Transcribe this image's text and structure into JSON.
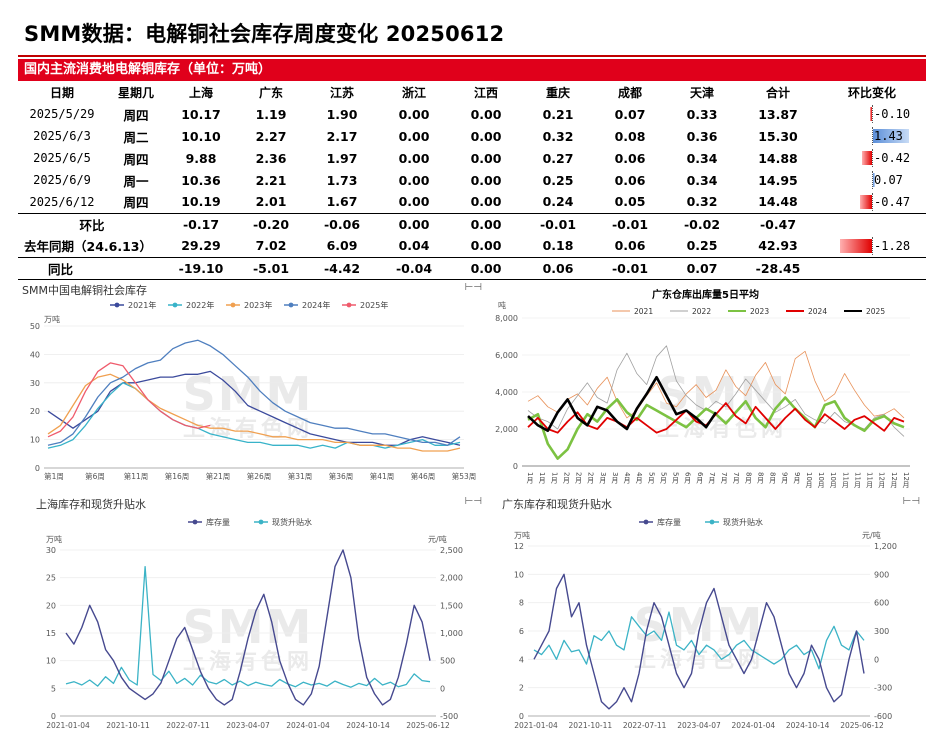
{
  "page_title": "SMM数据：电解铜社会库存周度变化 20250612",
  "table": {
    "caption": "国内主流消费地电解铜库存（单位：万吨）",
    "headers": [
      "日期",
      "星期几",
      "上海",
      "广东",
      "江苏",
      "浙江",
      "江西",
      "重庆",
      "成都",
      "天津",
      "合计",
      "环比变化"
    ],
    "rows": [
      {
        "date": "2025/5/29",
        "weekday": "周四",
        "values": [
          "10.17",
          "1.19",
          "1.90",
          "0.00",
          "0.00",
          "0.21",
          "0.07",
          "0.33",
          "13.87"
        ],
        "change": "-0.10",
        "change_num": -0.1
      },
      {
        "date": "2025/6/3",
        "weekday": "周二",
        "values": [
          "10.10",
          "2.27",
          "2.17",
          "0.00",
          "0.00",
          "0.32",
          "0.08",
          "0.36",
          "15.30"
        ],
        "change": "1.43",
        "change_num": 1.43
      },
      {
        "date": "2025/6/5",
        "weekday": "周四",
        "values": [
          "9.88",
          "2.36",
          "1.97",
          "0.00",
          "0.00",
          "0.27",
          "0.06",
          "0.34",
          "14.88"
        ],
        "change": "-0.42",
        "change_num": -0.42
      },
      {
        "date": "2025/6/9",
        "weekday": "周一",
        "values": [
          "10.36",
          "2.21",
          "1.73",
          "0.00",
          "0.00",
          "0.25",
          "0.06",
          "0.34",
          "14.95"
        ],
        "change": "0.07",
        "change_num": 0.07
      },
      {
        "date": "2025/6/12",
        "weekday": "周四",
        "values": [
          "10.19",
          "2.01",
          "1.67",
          "0.00",
          "0.00",
          "0.24",
          "0.05",
          "0.32",
          "14.48"
        ],
        "change": "-0.47",
        "change_num": -0.47
      }
    ],
    "summary": [
      {
        "label": "环比",
        "values": [
          "-0.17",
          "-0.20",
          "-0.06",
          "0.00",
          "0.00",
          "-0.01",
          "-0.01",
          "-0.02",
          "-0.47"
        ],
        "change": "",
        "change_num": null
      },
      {
        "label": "去年同期（24.6.13）",
        "values": [
          "29.29",
          "7.02",
          "6.09",
          "0.04",
          "0.00",
          "0.18",
          "0.06",
          "0.25",
          "42.93"
        ],
        "change": "-1.28",
        "change_num": -1.28
      },
      {
        "label": "同比",
        "values": [
          "-19.10",
          "-5.01",
          "-4.42",
          "-0.04",
          "0.00",
          "0.06",
          "-0.01",
          "0.07",
          "-28.45"
        ],
        "change": "",
        "change_num": null
      }
    ]
  },
  "watermark": {
    "main": "SMM",
    "sub": "上海有色网"
  },
  "panel_icon": "expand-icon",
  "chart_data": [
    {
      "type": "line",
      "title": "SMM中国电解铜社会库存",
      "ylabel": "万吨",
      "ylim": [
        0,
        50
      ],
      "yticks": [
        "0",
        "10",
        "20",
        "30",
        "40",
        "50"
      ],
      "xticks": [
        "第1周",
        "第6周",
        "第11周",
        "第16周",
        "第21周",
        "第26周",
        "第31周",
        "第36周",
        "第41周",
        "第46周",
        "第53周"
      ],
      "series": [
        {
          "name": "2021年",
          "color": "#3b4a9c",
          "values": [
            20,
            17,
            14,
            17,
            20,
            27,
            30,
            30,
            31,
            32,
            32,
            33,
            33,
            34,
            31,
            27,
            22,
            20,
            18,
            16,
            14,
            12,
            11,
            10,
            9,
            9,
            9,
            8,
            8,
            10,
            11,
            10,
            9,
            8
          ]
        },
        {
          "name": "2022年",
          "color": "#38b3c9",
          "values": [
            7,
            8,
            10,
            15,
            21,
            26,
            30,
            28,
            24,
            20,
            17,
            15,
            14,
            12,
            11,
            10,
            9,
            9,
            8,
            8,
            8,
            7,
            8,
            7,
            9,
            8,
            8,
            7,
            8,
            9,
            10,
            8,
            8,
            9
          ]
        },
        {
          "name": "2023年",
          "color": "#f0a050",
          "values": [
            12,
            15,
            22,
            29,
            32,
            33,
            31,
            28,
            24,
            21,
            19,
            17,
            15,
            14,
            14,
            13,
            13,
            12,
            11,
            11,
            10,
            10,
            10,
            9,
            9,
            8,
            8,
            8,
            7,
            7,
            6,
            6,
            6,
            7
          ]
        },
        {
          "name": "2024年",
          "color": "#4f7fbf",
          "values": [
            8,
            9,
            12,
            18,
            25,
            30,
            32,
            35,
            37,
            38,
            42,
            44,
            45,
            43,
            40,
            36,
            32,
            27,
            23,
            20,
            18,
            16,
            15,
            14,
            14,
            13,
            12,
            12,
            11,
            10,
            9,
            9,
            8,
            11
          ]
        },
        {
          "name": "2025年",
          "color": "#ef5b6c",
          "values": [
            11,
            13,
            18,
            27,
            34,
            37,
            36,
            30,
            24,
            20,
            17,
            15,
            14,
            15
          ]
        }
      ]
    },
    {
      "type": "line",
      "title": "广东仓库出库量5日平均",
      "ylabel": "吨",
      "ylim": [
        0,
        8000
      ],
      "yticks": [
        "0",
        "2,000",
        "4,000",
        "6,000",
        "8,000"
      ],
      "xticks": [
        "1月",
        "1月",
        "1月",
        "2月",
        "2月",
        "2月",
        "3月",
        "3月",
        "4月",
        "4月",
        "5月",
        "5月",
        "5月",
        "6月",
        "6月",
        "7月",
        "7月",
        "7月",
        "8月",
        "8月",
        "8月",
        "9月",
        "9月",
        "10月",
        "10月",
        "10月",
        "11月",
        "11月",
        "11月",
        "12月",
        "12月",
        "12月"
      ],
      "series": [
        {
          "name": "2021",
          "color": "#e8925a",
          "values": [
            3500,
            3800,
            3200,
            2900,
            3600,
            3900,
            3300,
            4200,
            4800,
            3500,
            2600,
            3000,
            3800,
            4500,
            3400,
            3200,
            3900,
            4400,
            3700,
            4100,
            5200,
            4300,
            3800,
            4900,
            5600,
            4400,
            3900,
            5800,
            6200,
            4600,
            3500,
            3900,
            5000,
            4100,
            3300,
            2700,
            2800,
            3100,
            2600
          ]
        },
        {
          "name": "2022",
          "color": "#a0a0a0",
          "values": [
            3000,
            2600,
            2400,
            2000,
            3100,
            3800,
            4500,
            3700,
            3400,
            5200,
            6100,
            5000,
            4400,
            5900,
            6500,
            4600,
            3800,
            3300,
            3000,
            3500,
            3200,
            3900,
            4700,
            4100,
            3500,
            2900,
            3200,
            3600,
            2800,
            2500,
            2300,
            2900,
            2400,
            2200,
            2000,
            2600,
            2800,
            2100,
            1600
          ]
        },
        {
          "name": "2023",
          "color": "#7cc242",
          "values": [
            2500,
            2800,
            1200,
            400,
            900,
            2000,
            2800,
            2400,
            3100,
            3600,
            2900,
            2500,
            3300,
            3000,
            2700,
            2400,
            2100,
            2600,
            3100,
            2800,
            2300,
            2900,
            3500,
            2600,
            2100,
            3100,
            3700,
            3100,
            2600,
            2100,
            3300,
            3500,
            2600,
            2200,
            1900,
            2500,
            2700,
            2300,
            2100
          ]
        },
        {
          "name": "2024",
          "color": "#e00000",
          "values": [
            2100,
            2600,
            2000,
            1800,
            2400,
            2900,
            2200,
            2000,
            2600,
            2400,
            2100,
            2600,
            2200,
            1800,
            2000,
            2500,
            3000,
            2400,
            2200,
            2800,
            3400,
            2700,
            2300,
            3200,
            2600,
            2000,
            2600,
            3100,
            2500,
            2100,
            2800,
            2400,
            2000,
            2500,
            2700,
            2300,
            1900,
            2600,
            2400
          ]
        },
        {
          "name": "2025",
          "color": "#000000",
          "values": [
            2700,
            2200,
            1900,
            2900,
            3600,
            2600,
            2200,
            3200,
            3000,
            2400,
            2000,
            3100,
            3900,
            4800,
            3800,
            2800,
            3000,
            2600,
            2100,
            2900
          ]
        }
      ]
    },
    {
      "type": "line",
      "title": "上海库存和现货升贴水",
      "ylabel": "万吨",
      "y2label": "元/吨",
      "ylim": [
        0,
        30
      ],
      "y2lim": [
        -500,
        2500
      ],
      "yticks": [
        "0",
        "5",
        "10",
        "15",
        "20",
        "25",
        "30"
      ],
      "y2ticks": [
        "-500",
        "0",
        "500",
        "1,000",
        "1,500",
        "2,000",
        "2,500"
      ],
      "xticks": [
        "2021-01-04",
        "2021-10-11",
        "2022-07-11",
        "2023-04-07",
        "2024-01-04",
        "2024-10-14",
        "2025-06-12"
      ],
      "series": [
        {
          "name": "库存量",
          "color": "#46498f",
          "values": [
            15,
            13,
            16,
            20,
            17,
            12,
            10,
            7,
            5,
            4,
            3,
            4,
            6,
            10,
            14,
            16,
            12,
            8,
            5,
            3,
            2,
            3,
            8,
            14,
            19,
            22,
            17,
            10,
            6,
            3,
            2,
            4,
            9,
            18,
            27,
            30,
            25,
            14,
            7,
            4,
            2,
            3,
            7,
            13,
            20,
            17,
            10
          ]
        },
        {
          "name": "现货升贴水",
          "color": "#3bb3c6",
          "values": [
            80,
            120,
            60,
            150,
            40,
            210,
            90,
            380,
            150,
            60,
            2200,
            250,
            140,
            310,
            90,
            180,
            60,
            240,
            120,
            80,
            160,
            60,
            130,
            50,
            110,
            70,
            40,
            160,
            80,
            30,
            110,
            60,
            90,
            40,
            130,
            70,
            20,
            90,
            50,
            180,
            60,
            110,
            30,
            70,
            260,
            140,
            120
          ]
        }
      ]
    },
    {
      "type": "line",
      "title": "广东库存和现货升贴水",
      "ylabel": "万吨",
      "y2label": "元/吨",
      "ylim": [
        0,
        12
      ],
      "y2lim": [
        -600,
        1200
      ],
      "yticks": [
        "0",
        "2",
        "4",
        "6",
        "8",
        "10",
        "12"
      ],
      "y2ticks": [
        "-600",
        "-300",
        "0",
        "300",
        "600",
        "900",
        "1,200"
      ],
      "xticks": [
        "2021-01-04",
        "2021-10-11",
        "2022-07-11",
        "2023-04-07",
        "2024-01-04",
        "2024-10-14",
        "2025-06-12"
      ],
      "series": [
        {
          "name": "库存量",
          "color": "#46498f",
          "values": [
            4,
            5,
            6,
            9,
            10,
            7,
            8,
            5,
            3,
            1,
            0.5,
            1,
            2,
            1,
            3,
            6,
            8,
            7,
            5,
            3,
            2,
            3,
            6,
            8,
            9,
            7,
            5,
            4,
            3,
            4,
            6,
            8,
            7,
            5,
            3,
            2,
            3,
            5,
            4,
            2,
            1,
            1.5,
            4,
            6,
            3
          ]
        },
        {
          "name": "现货升贴水",
          "color": "#3bb3c6",
          "values": [
            100,
            50,
            150,
            0,
            200,
            80,
            100,
            -50,
            250,
            200,
            300,
            150,
            100,
            450,
            350,
            250,
            300,
            200,
            500,
            150,
            100,
            200,
            50,
            150,
            100,
            0,
            50,
            150,
            200,
            100,
            50,
            0,
            -50,
            0,
            100,
            150,
            50,
            100,
            -100,
            200,
            350,
            150,
            100,
            300,
            200
          ]
        }
      ]
    }
  ]
}
